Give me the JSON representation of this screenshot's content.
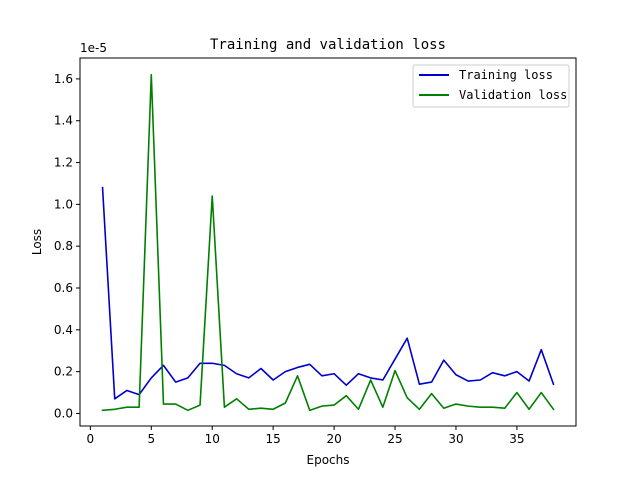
{
  "chart_data": {
    "type": "line",
    "title": "Training and validation loss",
    "xlabel": "Epochs",
    "ylabel": "Loss",
    "offset_text": "1e-5",
    "xlim": [
      -0.85,
      39.85
    ],
    "ylim": [
      -0.06,
      1.7
    ],
    "xticks": [
      0,
      5,
      10,
      15,
      20,
      25,
      30,
      35
    ],
    "xtick_labels": [
      "0",
      "5",
      "10",
      "15",
      "20",
      "25",
      "30",
      "35"
    ],
    "yticks": [
      0.0,
      0.2,
      0.4,
      0.6,
      0.8,
      1.0,
      1.2,
      1.4,
      1.6
    ],
    "ytick_labels": [
      "0.0",
      "0.2",
      "0.4",
      "0.6",
      "0.8",
      "1.0",
      "1.2",
      "1.4",
      "1.6"
    ],
    "grid": false,
    "legend_position": "top-right",
    "x": [
      1,
      2,
      3,
      4,
      5,
      6,
      7,
      8,
      9,
      10,
      11,
      12,
      13,
      14,
      15,
      16,
      17,
      18,
      19,
      20,
      21,
      22,
      23,
      24,
      25,
      26,
      27,
      28,
      29,
      30,
      31,
      32,
      33,
      34,
      35,
      36,
      37,
      38
    ],
    "series": [
      {
        "name": "Training loss",
        "color": "#0000cc",
        "values": [
          1.08,
          0.07,
          0.11,
          0.09,
          0.17,
          0.23,
          0.15,
          0.17,
          0.24,
          0.24,
          0.23,
          0.19,
          0.17,
          0.215,
          0.16,
          0.2,
          0.22,
          0.235,
          0.18,
          0.19,
          0.135,
          0.19,
          0.17,
          0.16,
          0.26,
          0.36,
          0.14,
          0.15,
          0.255,
          0.185,
          0.155,
          0.16,
          0.195,
          0.18,
          0.2,
          0.155,
          0.305,
          0.14
        ]
      },
      {
        "name": "Validation loss",
        "color": "#008000",
        "values": [
          0.015,
          0.02,
          0.03,
          0.03,
          1.62,
          0.045,
          0.045,
          0.015,
          0.04,
          1.04,
          0.03,
          0.07,
          0.02,
          0.025,
          0.02,
          0.05,
          0.18,
          0.015,
          0.035,
          0.04,
          0.085,
          0.02,
          0.16,
          0.03,
          0.205,
          0.075,
          0.02,
          0.095,
          0.025,
          0.045,
          0.035,
          0.03,
          0.03,
          0.025,
          0.1,
          0.02,
          0.1,
          0.02
        ]
      }
    ]
  }
}
